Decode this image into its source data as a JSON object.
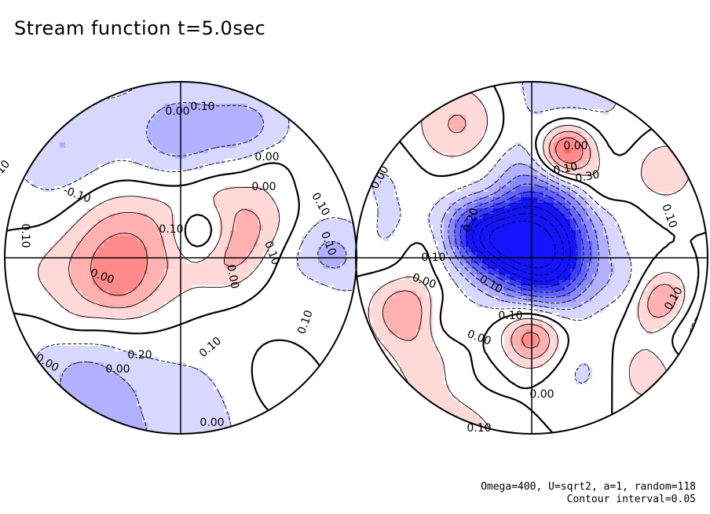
{
  "title": "Stream function t=5.0sec",
  "footer": {
    "params": "Omega=400, U=sqrt2, a=1, random=118",
    "contour": "Contour interval=0.05"
  },
  "chart_data": {
    "type": "heatmap",
    "title": "Stream function t=5.0sec",
    "projection": "two orthographic hemispheres",
    "contour_interval": 0.05,
    "colormap": {
      "negative": "#0000ff",
      "zero": "#ffffff",
      "positive": "#ff0000"
    },
    "line_styles": {
      "negative": "dashed",
      "zero": "thick solid",
      "positive": "solid"
    },
    "hemispheres": [
      {
        "name": "left",
        "labels": [
          "0.10",
          "0.10",
          "0.00",
          "0.00",
          "-0.10",
          "0.10",
          "0.10",
          "0.00",
          "0.10",
          "0.00",
          "0.10",
          "0.00",
          "0.00",
          "0.20",
          "0.10",
          "0.00",
          "0.10",
          "0.10",
          "0.00"
        ],
        "features": [
          {
            "kind": "max",
            "value": 0.25
          },
          {
            "kind": "max",
            "value": 0.2
          },
          {
            "kind": "max",
            "value": 0.15
          },
          {
            "kind": "max",
            "value": 0.2
          },
          {
            "kind": "max",
            "value": 0.15
          },
          {
            "kind": "min",
            "value": -0.25
          },
          {
            "kind": "min",
            "value": -0.15
          }
        ]
      },
      {
        "name": "right",
        "labels": [
          "0.00",
          "0.00",
          "0.10",
          "0.30",
          "0.20",
          "0.10",
          "0.10",
          "0.00",
          "0.10",
          "0.00",
          "0.00",
          "0.10",
          "0.10",
          "0.10"
        ],
        "features": [
          {
            "kind": "min",
            "value": -0.45
          },
          {
            "kind": "min",
            "value": -0.35
          },
          {
            "kind": "max",
            "value": 0.3
          },
          {
            "kind": "max",
            "value": 0.2
          },
          {
            "kind": "max",
            "value": 0.2
          }
        ]
      }
    ]
  }
}
